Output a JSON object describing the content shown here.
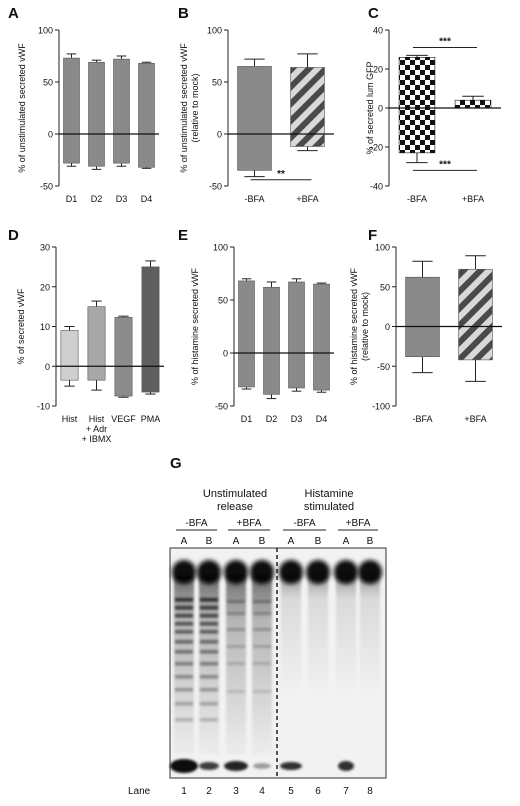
{
  "chart_data": [
    {
      "id": "A",
      "panel_label": "A",
      "type": "bar",
      "ylabel": "% of unstimulated secreted vWF",
      "ylim": [
        -50,
        100
      ],
      "yticks": [
        -50,
        0,
        50,
        100
      ],
      "ytick_labels": [
        "-50",
        "0",
        "50",
        "100"
      ],
      "categories": [
        "D1",
        "D2",
        "D3",
        "D4"
      ],
      "series": [
        {
          "top": [
            73,
            69,
            72,
            68
          ],
          "bottom": [
            -28,
            -31,
            -28,
            -32
          ],
          "err_top": [
            77,
            71,
            75,
            69
          ],
          "err_bottom": [
            -31,
            -34,
            -31,
            -33
          ]
        }
      ],
      "colors": [
        "#8a8a8a",
        "#8a8a8a",
        "#8a8a8a",
        "#8a8a8a"
      ],
      "patterns": [
        "solid",
        "solid",
        "solid",
        "solid"
      ],
      "annotations": []
    },
    {
      "id": "B",
      "panel_label": "B",
      "type": "bar",
      "ylabel": "% of unstimulated secreted vWF",
      "ylabel2": "(relative to mock)",
      "ylim": [
        -50,
        100
      ],
      "yticks": [
        -50,
        0,
        50,
        100
      ],
      "ytick_labels": [
        "-50",
        "0",
        "50",
        "100"
      ],
      "categories": [
        "-BFA",
        "+BFA"
      ],
      "series": [
        {
          "top": [
            65,
            64
          ],
          "bottom": [
            -35,
            -12
          ],
          "err_top": [
            72,
            77
          ],
          "err_bottom": [
            -41,
            -16
          ]
        }
      ],
      "colors": [
        "#8a8a8a",
        "#888888"
      ],
      "patterns": [
        "solid",
        "diag"
      ],
      "annotations": [
        {
          "text": "**",
          "from": 0,
          "to": 1,
          "y": -44,
          "side": "below"
        }
      ]
    },
    {
      "id": "C",
      "panel_label": "C",
      "type": "bar",
      "ylabel": "% of secreted lum GFP",
      "ylim": [
        -40,
        40
      ],
      "yticks": [
        -40,
        -20,
        0,
        20,
        40
      ],
      "ytick_labels": [
        "-40",
        "-20",
        "0",
        "20",
        "40"
      ],
      "categories": [
        "-BFA",
        "+BFA"
      ],
      "series": [
        {
          "top": [
            26,
            4
          ],
          "bottom": [
            -23,
            0
          ],
          "err_top": [
            27,
            6
          ],
          "err_bottom": [
            -28,
            0
          ]
        }
      ],
      "colors": [
        "#111111",
        "#111111"
      ],
      "patterns": [
        "checker",
        "checker"
      ],
      "annotations": [
        {
          "text": "***",
          "from": 0,
          "to": 1,
          "y": 31,
          "side": "above"
        },
        {
          "text": "***",
          "from": 0,
          "to": 1,
          "y": -32,
          "side": "below"
        }
      ]
    },
    {
      "id": "D",
      "panel_label": "D",
      "type": "bar",
      "ylabel": "% of secreted vWF",
      "ylim": [
        -10,
        30
      ],
      "yticks": [
        -10,
        0,
        10,
        20,
        30
      ],
      "ytick_labels": [
        "-10",
        "0",
        "10",
        "20",
        "30"
      ],
      "categories": [
        "Hist",
        "Hist\n+ Adr\n+ IBMX",
        "VEGF",
        "PMA"
      ],
      "series": [
        {
          "top": [
            9,
            15,
            12.3,
            25
          ],
          "bottom": [
            -3.5,
            -3.5,
            -7.5,
            -6.5
          ],
          "err_top": [
            10,
            16.4,
            12.6,
            26.5
          ],
          "err_bottom": [
            -5,
            -6,
            -7.8,
            -7
          ]
        }
      ],
      "colors": [
        "#cfcfcf",
        "#a8a8a8",
        "#8c8c8c",
        "#5f5f5f"
      ],
      "patterns": [
        "solid",
        "solid",
        "solid",
        "solid"
      ],
      "annotations": []
    },
    {
      "id": "E",
      "panel_label": "E",
      "type": "bar",
      "ylabel": "% of histamine secreted vWF",
      "ylim": [
        -50,
        100
      ],
      "yticks": [
        -50,
        0,
        50,
        100
      ],
      "ytick_labels": [
        "-50",
        "0",
        "50",
        "100"
      ],
      "categories": [
        "D1",
        "D2",
        "D3",
        "D4"
      ],
      "series": [
        {
          "top": [
            68,
            62,
            67,
            65
          ],
          "bottom": [
            -32,
            -39,
            -33,
            -35
          ],
          "err_top": [
            70,
            67,
            70,
            66
          ],
          "err_bottom": [
            -34,
            -43,
            -36,
            -37
          ]
        }
      ],
      "colors": [
        "#8a8a8a",
        "#8a8a8a",
        "#8a8a8a",
        "#8a8a8a"
      ],
      "patterns": [
        "solid",
        "solid",
        "solid",
        "solid"
      ],
      "annotations": []
    },
    {
      "id": "F",
      "panel_label": "F",
      "type": "bar",
      "ylabel": "% of histamine secreted vWF",
      "ylabel2": "(relative to mock)",
      "ylim": [
        -100,
        100
      ],
      "yticks": [
        -100,
        -50,
        0,
        50,
        100
      ],
      "ytick_labels": [
        "-100",
        "-50",
        "0",
        "50",
        "100"
      ],
      "categories": [
        "-BFA",
        "+BFA"
      ],
      "series": [
        {
          "top": [
            62,
            72
          ],
          "bottom": [
            -38,
            -42
          ],
          "err_top": [
            82,
            89
          ],
          "err_bottom": [
            -58,
            -69
          ]
        }
      ],
      "colors": [
        "#8a8a8a",
        "#888888"
      ],
      "patterns": [
        "solid",
        "diag"
      ],
      "annotations": []
    }
  ],
  "gel": {
    "panel_label": "G",
    "title_left": [
      "Unstimulated",
      "release"
    ],
    "title_right": [
      "Histamine",
      "stimulated"
    ],
    "groups": [
      "-BFA",
      "+BFA",
      "-BFA",
      "+BFA"
    ],
    "sublanes": [
      "A",
      "B",
      "A",
      "B",
      "A",
      "B",
      "A",
      "B"
    ],
    "lane_label": "Lane",
    "lane_numbers": [
      "1",
      "2",
      "3",
      "4",
      "5",
      "6",
      "7",
      "8"
    ]
  }
}
